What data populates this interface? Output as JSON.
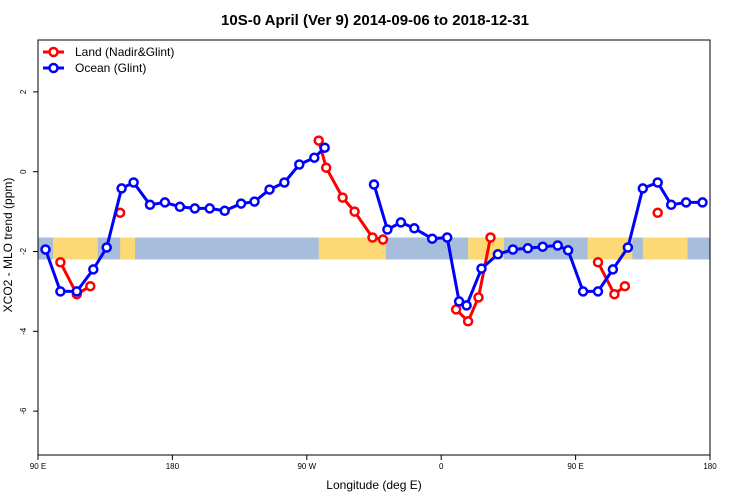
{
  "chart_data": {
    "type": "line",
    "title": "10S-0 April (Ver 9)   2014-09-06 to 2018-12-31",
    "xlabel": "Longitude (deg E)",
    "ylabel": "XCO2 - MLO trend (ppm)",
    "xlim": [
      90,
      540
    ],
    "ylim": [
      -7.1,
      3.3
    ],
    "x_ticks": [
      90,
      180,
      270,
      360,
      450,
      540
    ],
    "x_tick_labels": [
      "90 E",
      "180",
      "90 W",
      "0",
      "90 E",
      "180"
    ],
    "y_ticks": [
      -6,
      -4,
      -2,
      0,
      2
    ],
    "y_tick_labels": [
      "-6",
      "-4",
      "-2",
      "0",
      "2"
    ],
    "legend_position": "top-left",
    "grid": false,
    "band": {
      "y_range": [
        -2.2,
        -1.65
      ],
      "ocean_color": "#a6bddb",
      "land_color": "#fcd975",
      "land_x_ranges": [
        [
          100,
          130
        ],
        [
          145,
          155
        ],
        [
          278,
          323
        ],
        [
          378,
          402
        ],
        [
          458,
          488
        ],
        [
          495,
          525
        ]
      ]
    },
    "series": [
      {
        "name": "Land (Nadir&Glint)",
        "color": "#ff0000",
        "segments": [
          {
            "x": [
              105,
              116,
              125
            ],
            "y": [
              -2.27,
              -3.07,
              -2.87
            ]
          },
          {
            "x": [
              145
            ],
            "y": [
              -1.03
            ]
          },
          {
            "x": [
              278,
              283,
              294,
              302,
              314,
              321
            ],
            "y": [
              0.78,
              0.1,
              -0.65,
              -1.0,
              -1.65,
              -1.7
            ]
          },
          {
            "x": [
              370,
              378,
              385,
              393
            ],
            "y": [
              -3.45,
              -3.75,
              -3.15,
              -1.65
            ]
          },
          {
            "x": [
              465,
              476,
              483
            ],
            "y": [
              -2.27,
              -3.07,
              -2.87
            ]
          },
          {
            "x": [
              505
            ],
            "y": [
              -1.03
            ]
          }
        ]
      },
      {
        "name": "Ocean (Glint)",
        "color": "#0000ff",
        "segments": [
          {
            "x": [
              95,
              105,
              116,
              127,
              136,
              146,
              154,
              165,
              175,
              185,
              195,
              205,
              215,
              226,
              235,
              245,
              255,
              265,
              275,
              282
            ],
            "y": [
              -1.95,
              -3.0,
              -3.0,
              -2.45,
              -1.9,
              -0.42,
              -0.27,
              -0.83,
              -0.77,
              -0.88,
              -0.92,
              -0.92,
              -0.98,
              -0.8,
              -0.75,
              -0.45,
              -0.27,
              0.18,
              0.35,
              0.6
            ]
          },
          {
            "x": [
              315,
              324,
              333,
              342,
              354,
              364,
              372,
              377,
              387,
              398,
              408,
              418,
              428,
              438,
              445,
              455,
              465,
              475,
              485,
              495,
              505,
              514,
              524,
              535
            ],
            "y": [
              -0.32,
              -1.45,
              -1.27,
              -1.42,
              -1.68,
              -1.65,
              -3.25,
              -3.35,
              -2.43,
              -2.07,
              -1.95,
              -1.92,
              -1.88,
              -1.85,
              -1.97,
              -3.0,
              -3.0,
              -2.45,
              -1.9,
              -0.42,
              -0.27,
              -0.83,
              -0.77,
              -0.77
            ]
          }
        ]
      }
    ]
  }
}
